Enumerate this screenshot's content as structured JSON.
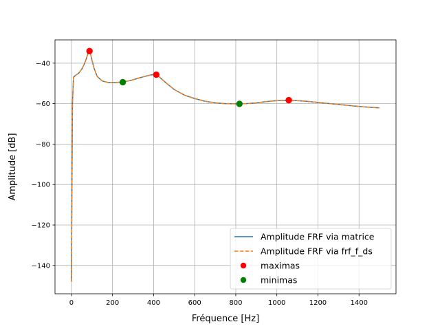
{
  "chart_data": {
    "type": "line",
    "title": "",
    "xlabel": "Fréquence [Hz]",
    "ylabel": "Amplitude [dB]",
    "xlim": [
      -80,
      1580
    ],
    "ylim": [
      -154,
      -28.5
    ],
    "xticks": [
      0,
      200,
      400,
      600,
      800,
      1000,
      1200,
      1400
    ],
    "yticks": [
      -140,
      -120,
      -100,
      -80,
      -60,
      -40
    ],
    "xtick_labels": [
      "0",
      "200",
      "400",
      "600",
      "800",
      "1000",
      "1200",
      "1400"
    ],
    "ytick_labels": [
      "−140",
      "−120",
      "−100",
      "−80",
      "−60",
      "−40"
    ],
    "grid": true,
    "legend_position": "lower-right",
    "series": [
      {
        "name": "Amplitude FRF via matrice",
        "style": "solid",
        "color": "#1f77b4",
        "x": [
          0,
          2,
          5,
          10,
          20,
          35,
          50,
          60,
          70,
          78,
          85,
          92,
          100,
          110,
          125,
          150,
          180,
          215,
          250,
          290,
          330,
          370,
          400,
          413,
          430,
          460,
          500,
          550,
          600,
          650,
          700,
          750,
          800,
          818,
          850,
          900,
          950,
          1000,
          1058,
          1100,
          1150,
          1200,
          1250,
          1300,
          1350,
          1400,
          1450,
          1500
        ],
        "y": [
          -148,
          -110,
          -60,
          -47,
          -46,
          -45,
          -43,
          -41,
          -38.5,
          -36,
          -34,
          -35,
          -38.5,
          -42.5,
          -46.5,
          -48.8,
          -49.6,
          -49.6,
          -49.3,
          -48.5,
          -47.3,
          -46.2,
          -45.6,
          -45.8,
          -47,
          -49.7,
          -53,
          -55.8,
          -57.5,
          -58.8,
          -59.6,
          -60,
          -60.1,
          -60.1,
          -60,
          -59.6,
          -59,
          -58.5,
          -58.4,
          -58.5,
          -58.9,
          -59.4,
          -59.9,
          -60.4,
          -60.9,
          -61.4,
          -61.8,
          -62.1
        ]
      },
      {
        "name": "Amplitude FRF via frf_f_ds",
        "style": "dashed",
        "color": "#ff7f0e",
        "x": [
          0,
          2,
          5,
          10,
          20,
          35,
          50,
          60,
          70,
          78,
          85,
          92,
          100,
          110,
          125,
          150,
          180,
          215,
          250,
          290,
          330,
          370,
          400,
          413,
          430,
          460,
          500,
          550,
          600,
          650,
          700,
          750,
          800,
          818,
          850,
          900,
          950,
          1000,
          1058,
          1100,
          1150,
          1200,
          1250,
          1300,
          1350,
          1400,
          1450,
          1500
        ],
        "y": [
          -148,
          -110,
          -60,
          -47,
          -46,
          -45,
          -43,
          -41,
          -38.5,
          -36,
          -34,
          -35,
          -38.5,
          -42.5,
          -46.5,
          -48.8,
          -49.6,
          -49.6,
          -49.3,
          -48.5,
          -47.3,
          -46.2,
          -45.6,
          -45.8,
          -47,
          -49.7,
          -53,
          -55.8,
          -57.5,
          -58.8,
          -59.6,
          -60,
          -60.1,
          -60.1,
          -60,
          -59.6,
          -59,
          -58.5,
          -58.4,
          -58.5,
          -58.9,
          -59.4,
          -59.9,
          -60.4,
          -60.9,
          -61.4,
          -61.8,
          -62.1
        ]
      },
      {
        "name": "maximas",
        "style": "markers",
        "color": "#ff0000",
        "x": [
          88,
          413,
          1058
        ],
        "y": [
          -34,
          -45.7,
          -58.3
        ]
      },
      {
        "name": "minimas",
        "style": "markers",
        "color": "#008000",
        "x": [
          250,
          818
        ],
        "y": [
          -49.4,
          -60.1
        ]
      }
    ]
  }
}
